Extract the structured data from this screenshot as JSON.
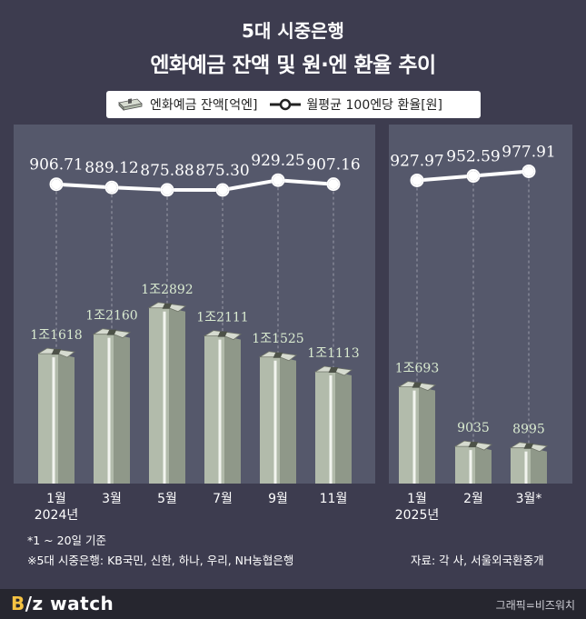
{
  "title": {
    "line1": "5대 시중은행",
    "line2": "엔화예금 잔액 및 원·엔 환율 추이"
  },
  "legend": {
    "deposit_label": "엔화예금 잔액[억엔]",
    "rate_label": "월평균 100엔당 환율[원]"
  },
  "chart_data": {
    "type": "bar+line",
    "categories": [
      "1월",
      "3월",
      "5월",
      "7월",
      "9월",
      "11월",
      "1월",
      "2월",
      "3월*"
    ],
    "year_labels": [
      "2024년",
      "2025년"
    ],
    "series": [
      {
        "name": "엔화예금 잔액[억엔]",
        "type": "bar",
        "values": [
          11618,
          12160,
          12892,
          12111,
          11525,
          11113,
          10693,
          9035,
          8995
        ],
        "labels": [
          "1조1618",
          "1조2160",
          "1조2892",
          "1조2111",
          "1조1525",
          "1조1113",
          "1조693",
          "9035",
          "8995"
        ]
      },
      {
        "name": "월평균 100엔당 환율[원]",
        "type": "line",
        "values": [
          906.71,
          889.12,
          875.88,
          875.3,
          929.25,
          907.16,
          927.97,
          952.59,
          977.91
        ],
        "labels": [
          "906.71",
          "889.12",
          "875.88",
          "875.30",
          "929.25",
          "907.16",
          "927.97",
          "952.59",
          "977.91"
        ]
      }
    ],
    "groups": [
      [
        0,
        1,
        2,
        3,
        4,
        5
      ],
      [
        6,
        7,
        8
      ]
    ]
  },
  "notes": {
    "note1": "*1 ~ 20일 기준",
    "note2": "※5대 시중은행: KB국민, 신한, 하나, 우리, NH농협은행",
    "source": "자료: 각 사, 서울외국환중개"
  },
  "footer": {
    "logo_b": "B",
    "logo_rest": "/z watch",
    "credit": "그래픽=비즈워치"
  },
  "colors": {
    "background": "#3d3c4f",
    "panel": "#55586b",
    "bar_front": "#b2bbab",
    "bar_side": "#8f9889",
    "bar_top": "#d6dbd0",
    "bar_label": "#d9ead0",
    "line": "#ffffff"
  }
}
